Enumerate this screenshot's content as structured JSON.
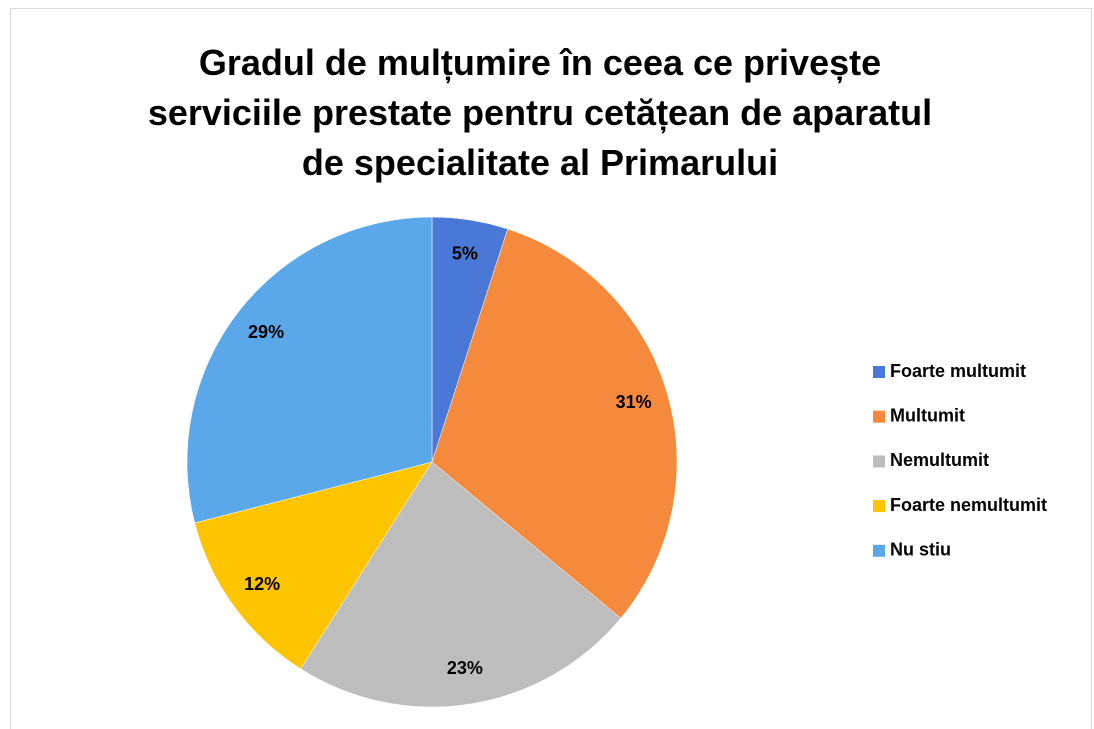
{
  "chart_data": {
    "type": "pie",
    "title": "Gradul de mulțumire în ceea ce privește serviciile prestate pentru cetățean de aparatul de specialitate al Primarului",
    "categories": [
      "Foarte multumit",
      "Multumit",
      "Nemultumit",
      "Foarte nemultumit",
      "Nu stiu"
    ],
    "values": [
      5,
      31,
      23,
      12,
      29
    ],
    "value_labels": [
      "5%",
      "31%",
      "23%",
      "12%",
      "29%"
    ],
    "colors": [
      "#4a78d6",
      "#f68a3c",
      "#bdbdbd",
      "#ffc400",
      "#5aa8ea"
    ],
    "legend": "right"
  }
}
